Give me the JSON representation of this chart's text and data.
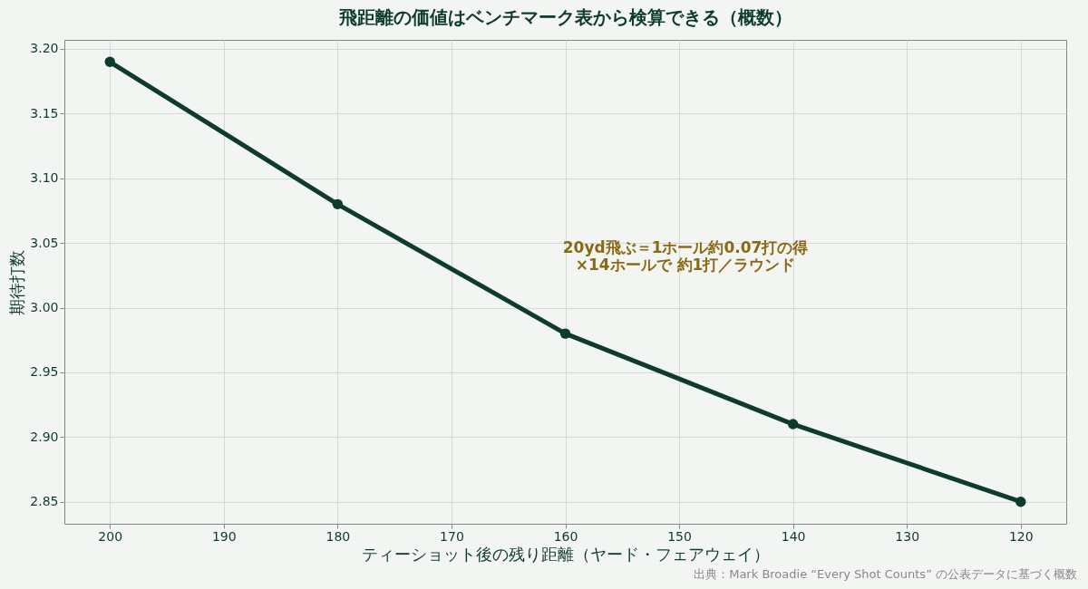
{
  "chart_data": {
    "type": "line",
    "title": "飛距離の価値はベンチマーク表から検算できる（概数）",
    "xlabel": "ティーショット後の残り距離（ヤード・フェアウェイ）",
    "ylabel": "期待打数",
    "x": [
      200,
      180,
      160,
      140,
      120
    ],
    "series": [
      {
        "color": "#0d3b2e",
        "values": [
          3.19,
          3.08,
          2.98,
          2.91,
          2.85
        ]
      }
    ],
    "xlim": [
      204,
      116
    ],
    "xticks": [
      200,
      190,
      180,
      170,
      160,
      150,
      140,
      130,
      120
    ],
    "ylim": [
      2.833,
      3.207
    ],
    "yticks": [
      {
        "value": 2.85,
        "label": "2.85"
      },
      {
        "value": 2.9,
        "label": "2.90"
      },
      {
        "value": 2.95,
        "label": "2.95"
      },
      {
        "value": 3.0,
        "label": "3.00"
      },
      {
        "value": 3.05,
        "label": "3.05"
      },
      {
        "value": 3.1,
        "label": "3.10"
      },
      {
        "value": 3.15,
        "label": "3.15"
      },
      {
        "value": 3.2,
        "label": "3.20"
      }
    ],
    "grid": true,
    "marker": "circle",
    "line_style": "solid",
    "annotations": [
      "20yd飛ぶ＝1ホール約0.07打の得\n×14ホールで 約1打／ラウンド",
      "出典：Mark Broadie “Every Shot Counts” の公表データに基づく概数"
    ]
  }
}
